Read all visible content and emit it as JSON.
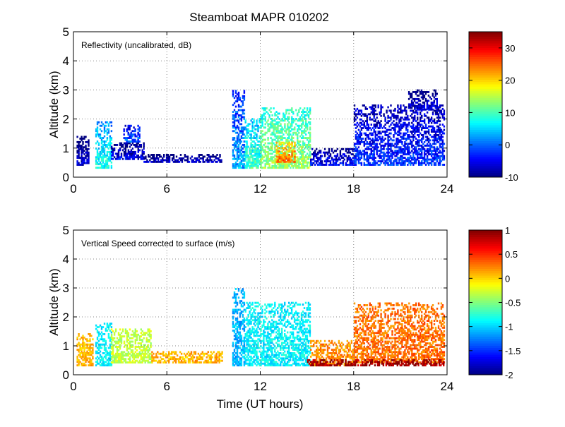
{
  "title": "Steamboat MAPR 010202",
  "xlabel": "Time (UT hours)",
  "chart_data": [
    {
      "type": "heatmap",
      "name": "reflectivity",
      "annotation": "Reflectivity (uncalibrated, dB)",
      "ylabel": "Altitude (km)",
      "xlim": [
        0,
        24
      ],
      "ylim": [
        0,
        5
      ],
      "xticks": [
        0,
        6,
        12,
        18,
        24
      ],
      "yticks": [
        0,
        1,
        2,
        3,
        4,
        5
      ],
      "grid": true,
      "colorbar": {
        "min": -10,
        "max": 35,
        "ticks": [
          -10,
          0,
          10,
          20,
          30
        ]
      },
      "echo_regions": [
        {
          "t0": 0.2,
          "t1": 1.0,
          "z0": 0.4,
          "z1": 1.4,
          "dbz": -6
        },
        {
          "t0": 1.4,
          "t1": 2.4,
          "z0": 0.3,
          "z1": 1.9,
          "dbz": 8
        },
        {
          "t0": 2.4,
          "t1": 4.5,
          "z0": 0.6,
          "z1": 1.2,
          "dbz": -5
        },
        {
          "t0": 3.2,
          "t1": 4.2,
          "z0": 1.2,
          "z1": 1.8,
          "dbz": 0
        },
        {
          "t0": 4.5,
          "t1": 9.5,
          "z0": 0.5,
          "z1": 0.8,
          "dbz": -7
        },
        {
          "t0": 10.2,
          "t1": 11.0,
          "z0": 0.3,
          "z1": 3.0,
          "dbz": 3
        },
        {
          "t0": 11.0,
          "t1": 12.0,
          "z0": 0.3,
          "z1": 2.0,
          "dbz": 10
        },
        {
          "t0": 12.0,
          "t1": 15.2,
          "z0": 0.3,
          "z1": 2.4,
          "dbz": 14
        },
        {
          "t0": 13.0,
          "t1": 14.2,
          "z0": 0.5,
          "z1": 1.2,
          "dbz": 25
        },
        {
          "t0": 15.2,
          "t1": 18.0,
          "z0": 0.4,
          "z1": 1.0,
          "dbz": -4
        },
        {
          "t0": 18.0,
          "t1": 23.8,
          "z0": 0.4,
          "z1": 2.5,
          "dbz": -2
        },
        {
          "t0": 21.5,
          "t1": 23.3,
          "z0": 2.3,
          "z1": 3.0,
          "dbz": -6
        }
      ]
    },
    {
      "type": "heatmap",
      "name": "vertical_speed",
      "annotation": "Vertical Speed corrected to surface (m/s)",
      "ylabel": "Altitude (km)",
      "xlim": [
        0,
        24
      ],
      "ylim": [
        0,
        5
      ],
      "xticks": [
        0,
        6,
        12,
        18,
        24
      ],
      "yticks": [
        0,
        1,
        2,
        3,
        4,
        5
      ],
      "grid": true,
      "colorbar": {
        "min": -2,
        "max": 1,
        "ticks": [
          -2,
          -1.5,
          -1,
          -0.5,
          0,
          0.5,
          1
        ]
      },
      "velocity_regions": [
        {
          "t0": 0.2,
          "t1": 1.2,
          "z0": 0.3,
          "z1": 1.4,
          "w": 0.1
        },
        {
          "t0": 1.4,
          "t1": 2.4,
          "z0": 0.3,
          "z1": 1.8,
          "w": -0.9
        },
        {
          "t0": 2.4,
          "t1": 5.0,
          "z0": 0.4,
          "z1": 1.6,
          "w": -0.3
        },
        {
          "t0": 5.0,
          "t1": 9.5,
          "z0": 0.4,
          "z1": 0.8,
          "w": 0.1
        },
        {
          "t0": 10.2,
          "t1": 11.0,
          "z0": 0.3,
          "z1": 3.0,
          "w": -1.1
        },
        {
          "t0": 11.0,
          "t1": 15.2,
          "z0": 0.3,
          "z1": 2.5,
          "w": -0.9
        },
        {
          "t0": 15.2,
          "t1": 18.0,
          "z0": 0.3,
          "z1": 1.2,
          "w": 0.2
        },
        {
          "t0": 18.0,
          "t1": 23.8,
          "z0": 0.4,
          "z1": 2.5,
          "w": 0.3
        },
        {
          "t0": 15.0,
          "t1": 23.8,
          "z0": 0.3,
          "z1": 0.5,
          "w": 0.9
        }
      ]
    }
  ]
}
